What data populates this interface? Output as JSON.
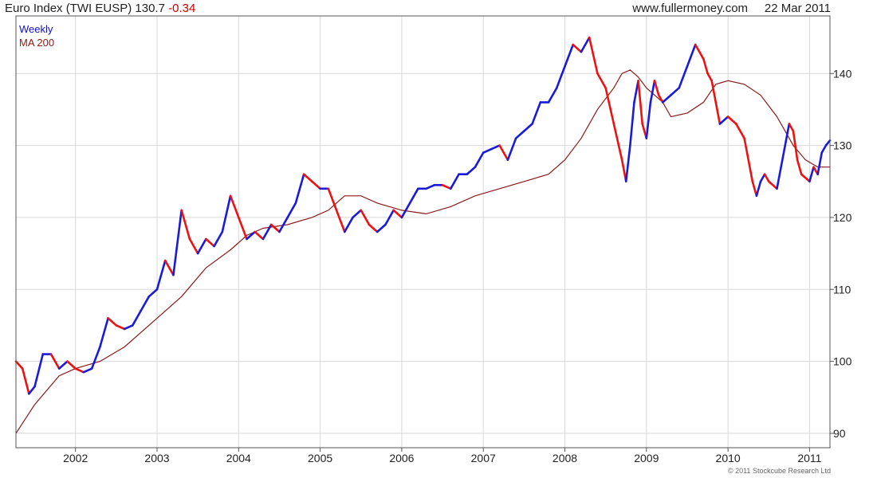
{
  "header": {
    "title": "Euro Index (TWI EUSP)",
    "last": "130.7",
    "change": "-0.34",
    "source": "www.fullermoney.com",
    "date": "22 Mar 2011"
  },
  "legend": [
    "Weekly",
    "MA 200"
  ],
  "copyright": "© 2011 Stockcube Research Ltd",
  "colors": {
    "up": "#1a1adb",
    "down": "#ee1111",
    "ma": "#8b1a1a",
    "grid": "#d8d8d8",
    "frame": "#555555"
  },
  "chart_data": {
    "type": "line",
    "title": "Euro Index (TWI EUSP)",
    "frequency": "Weekly",
    "ylim": [
      88,
      148
    ],
    "y_ticks": [
      90,
      100,
      110,
      120,
      130,
      140
    ],
    "x_range": [
      2001.27,
      2011.25
    ],
    "x_ticks": [
      2002,
      2003,
      2004,
      2005,
      2006,
      2007,
      2008,
      2009,
      2010,
      2011
    ],
    "grid": true,
    "y_axis_side": "right",
    "legend_position": "top-left",
    "series": [
      {
        "name": "Weekly",
        "x": [
          2001.27,
          2001.35,
          2001.43,
          2001.5,
          2001.6,
          2001.7,
          2001.8,
          2001.9,
          2002.0,
          2002.1,
          2002.2,
          2002.3,
          2002.4,
          2002.5,
          2002.6,
          2002.7,
          2002.8,
          2002.9,
          2003.0,
          2003.1,
          2003.2,
          2003.3,
          2003.4,
          2003.5,
          2003.6,
          2003.7,
          2003.8,
          2003.9,
          2004.0,
          2004.1,
          2004.2,
          2004.3,
          2004.4,
          2004.5,
          2004.6,
          2004.7,
          2004.8,
          2004.9,
          2005.0,
          2005.1,
          2005.2,
          2005.3,
          2005.4,
          2005.5,
          2005.6,
          2005.7,
          2005.8,
          2005.9,
          2006.0,
          2006.1,
          2006.2,
          2006.3,
          2006.4,
          2006.5,
          2006.6,
          2006.7,
          2006.8,
          2006.9,
          2007.0,
          2007.1,
          2007.2,
          2007.3,
          2007.4,
          2007.5,
          2007.6,
          2007.7,
          2007.8,
          2007.9,
          2008.0,
          2008.1,
          2008.2,
          2008.3,
          2008.4,
          2008.5,
          2008.6,
          2008.7,
          2008.75,
          2008.8,
          2008.85,
          2008.9,
          2008.95,
          2009.0,
          2009.05,
          2009.1,
          2009.15,
          2009.2,
          2009.3,
          2009.4,
          2009.5,
          2009.6,
          2009.7,
          2009.75,
          2009.8,
          2009.9,
          2010.0,
          2010.1,
          2010.2,
          2010.3,
          2010.35,
          2010.4,
          2010.45,
          2010.5,
          2010.6,
          2010.7,
          2010.75,
          2010.8,
          2010.85,
          2010.9,
          2011.0,
          2011.05,
          2011.1,
          2011.15,
          2011.2,
          2011.25
        ],
        "values": [
          100,
          99,
          95.5,
          96.5,
          101,
          101,
          99,
          100,
          99,
          98.5,
          99,
          102,
          106,
          105,
          104.5,
          105,
          107,
          109,
          110,
          114,
          112,
          121,
          117,
          115,
          117,
          116,
          118,
          123,
          120,
          117,
          118,
          117,
          119,
          118,
          120,
          122,
          126,
          125,
          124,
          124,
          121,
          118,
          120,
          121,
          119,
          118,
          119,
          121,
          120,
          122,
          124,
          124,
          124.5,
          124.5,
          124,
          126,
          126,
          127,
          129,
          129.5,
          130,
          128,
          131,
          132,
          133,
          136,
          136,
          138,
          141,
          144,
          143,
          145,
          140,
          138,
          133,
          128,
          125,
          130,
          136,
          139,
          133,
          131,
          136,
          139,
          137,
          136,
          137,
          138,
          141,
          144,
          142,
          140,
          139,
          133,
          134,
          133,
          131,
          125,
          123,
          125,
          126,
          125,
          124,
          130,
          133,
          132,
          128,
          126,
          125,
          127,
          126,
          129,
          130,
          130.7
        ]
      },
      {
        "name": "MA 200",
        "x": [
          2001.27,
          2001.5,
          2001.8,
          2002.0,
          2002.3,
          2002.6,
          2003.0,
          2003.3,
          2003.6,
          2003.9,
          2004.1,
          2004.3,
          2004.6,
          2004.9,
          2005.1,
          2005.3,
          2005.5,
          2005.7,
          2006.0,
          2006.3,
          2006.6,
          2006.9,
          2007.2,
          2007.5,
          2007.8,
          2008.0,
          2008.2,
          2008.4,
          2008.6,
          2008.7,
          2008.8,
          2008.9,
          2009.0,
          2009.2,
          2009.3,
          2009.5,
          2009.7,
          2009.85,
          2010.0,
          2010.2,
          2010.4,
          2010.6,
          2010.8,
          2010.95,
          2011.1,
          2011.25
        ],
        "values": [
          90,
          94,
          98,
          99,
          100,
          102,
          106,
          109,
          113,
          115.5,
          117.5,
          118.5,
          119,
          120,
          121,
          123,
          123,
          122,
          121,
          120.5,
          121.5,
          123,
          124,
          125,
          126,
          128,
          131,
          135,
          138,
          140,
          140.5,
          139.5,
          138,
          136,
          134,
          134.5,
          136,
          138.5,
          139,
          138.5,
          137,
          134,
          130,
          128,
          127,
          127
        ]
      }
    ]
  }
}
